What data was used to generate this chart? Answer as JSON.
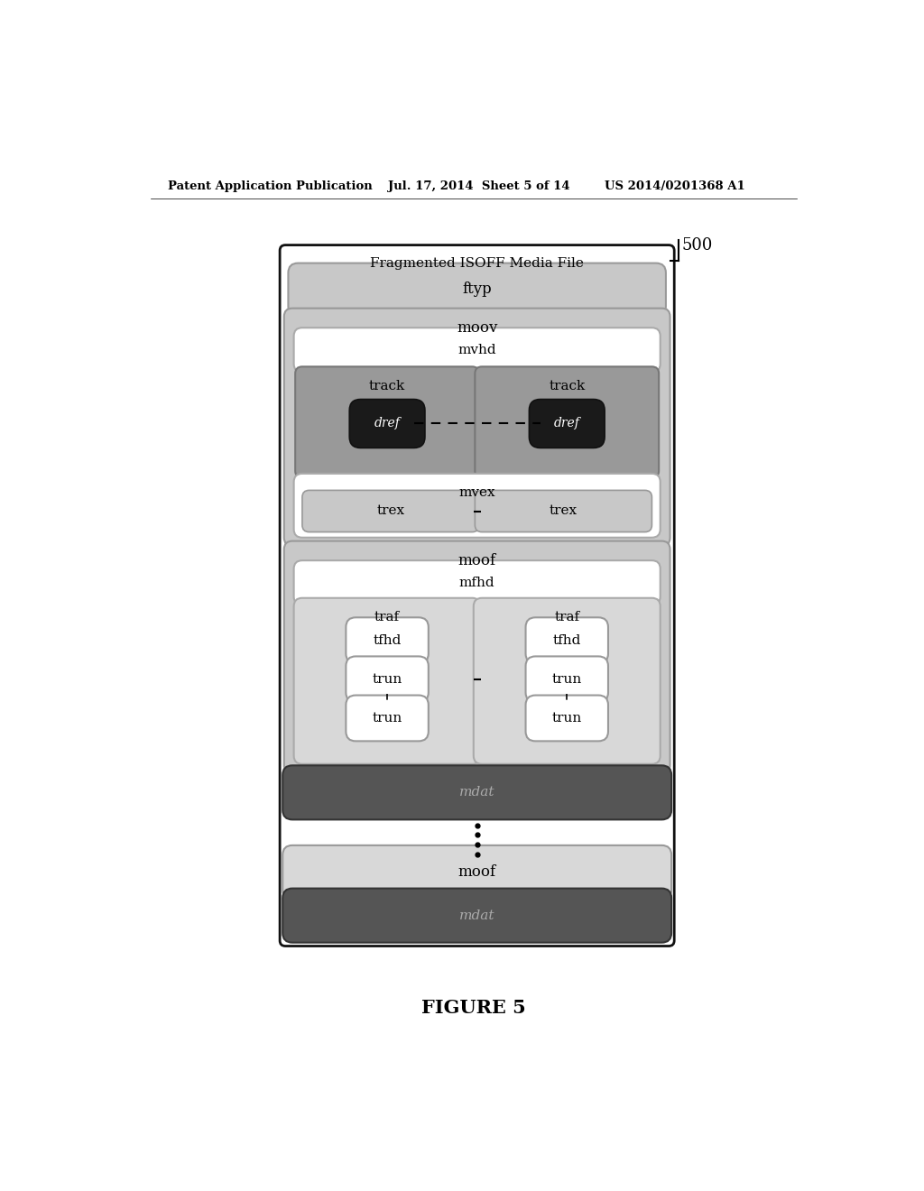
{
  "header_left": "Patent Application Publication",
  "header_mid": "Jul. 17, 2014  Sheet 5 of 14",
  "header_right": "US 2014/0201368 A1",
  "figure_label": "FIGURE 5",
  "diagram_label": "500",
  "outer_title": "Fragmented ISOFF Media File",
  "bg_color": "#ffffff"
}
